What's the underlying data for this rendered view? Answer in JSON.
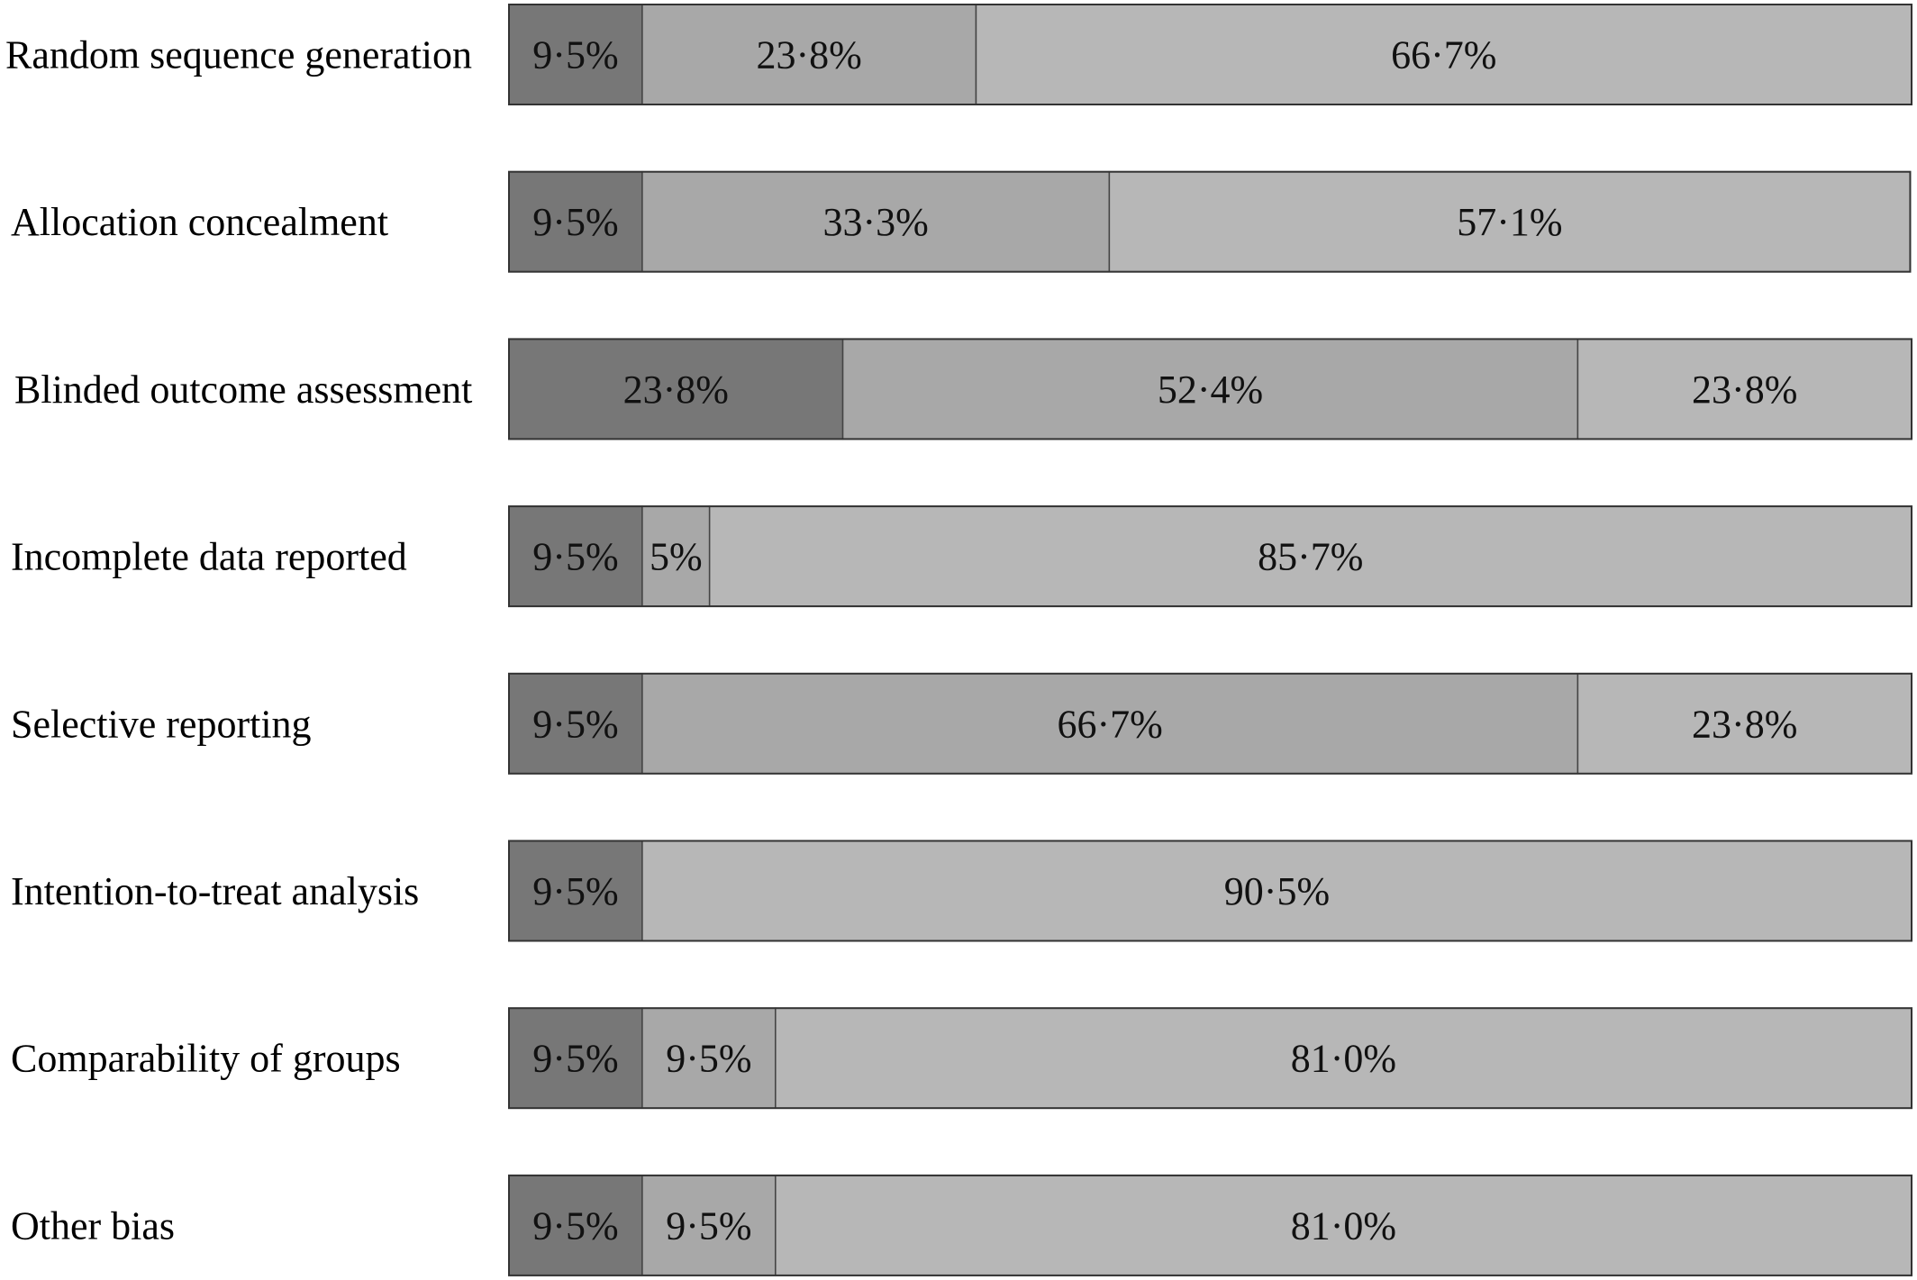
{
  "chart_data": {
    "type": "bar",
    "orientation": "horizontal",
    "stacked": true,
    "xlim": [
      0,
      100
    ],
    "grid": false,
    "legend": "none",
    "categories": [
      "Random sequence generation",
      "Allocation concealment",
      "Blinded outcome assessment",
      "Incomplete data reported",
      "Selective reporting",
      "Intention-to-treat analysis",
      "Comparability of groups",
      "Other bias"
    ],
    "series": [
      {
        "color": "#777777",
        "values": [
          9.5,
          9.5,
          23.8,
          9.5,
          9.5,
          9.5,
          9.5,
          9.5
        ],
        "labels": [
          "9·5%",
          "9·5%",
          "23·8%",
          "9·5%",
          "9·5%",
          "9·5%",
          "9·5%",
          "9·5%"
        ]
      },
      {
        "color": "#a8a8a8",
        "values": [
          23.8,
          33.3,
          52.4,
          4.8,
          66.7,
          0,
          9.5,
          9.5
        ],
        "labels": [
          "23·8%",
          "33·3%",
          "52·4%",
          "5%",
          "66·7%",
          "",
          "9·5%",
          "9·5%"
        ]
      },
      {
        "color": "#b7b7b7",
        "values": [
          66.7,
          57.1,
          23.8,
          85.7,
          23.8,
          90.5,
          81.0,
          81.0
        ],
        "labels": [
          "66·7%",
          "57·1%",
          "23·8%",
          "85·7%",
          "23·8%",
          "90·5%",
          "81·0%",
          "81·0%"
        ]
      }
    ]
  }
}
